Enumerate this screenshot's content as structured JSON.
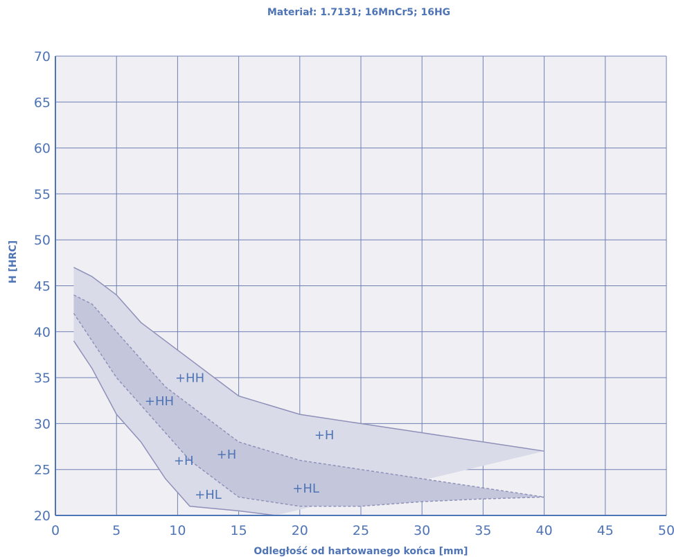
{
  "chart_data": {
    "type": "area",
    "title": "Materiał: 1.7131; 16MnCr5; 16HG",
    "xlabel": "Odległość od hartowanego końca [mm]",
    "ylabel": "H [HRC]",
    "xlim": [
      0,
      50
    ],
    "ylim": [
      20,
      70
    ],
    "xticks": [
      "0",
      "5",
      "10",
      "15",
      "20",
      "25",
      "30",
      "35",
      "40",
      "45",
      "50"
    ],
    "yticks": [
      "20",
      "25",
      "30",
      "35",
      "40",
      "45",
      "50",
      "55",
      "60",
      "65",
      "70"
    ],
    "grid": true,
    "series": [
      {
        "x": [
          1.5,
          3,
          5,
          7,
          9,
          11,
          13,
          15,
          20,
          25,
          30,
          35,
          40
        ],
        "y": [
          47,
          46,
          44,
          41,
          39,
          37,
          35,
          33,
          31,
          30,
          29,
          28,
          27
        ]
      },
      {
        "x": [
          1.5,
          3,
          5,
          7,
          9,
          11,
          13,
          15,
          20,
          25,
          30,
          35,
          40
        ],
        "y": [
          44,
          43,
          40,
          37,
          34,
          32,
          30,
          28,
          26,
          25,
          24,
          23,
          22
        ]
      },
      {
        "x": [
          1.5,
          3,
          5,
          7,
          9,
          11,
          13,
          15,
          20,
          25,
          30,
          35,
          40
        ],
        "y": [
          42,
          39,
          35,
          32,
          29,
          26,
          24,
          22,
          21,
          21,
          21.5,
          21.8,
          22
        ]
      },
      {
        "x": [
          1.5,
          3,
          5,
          7,
          9,
          11,
          15,
          18
        ],
        "y": [
          39,
          36,
          31,
          28,
          24,
          21,
          20.5,
          20
        ]
      }
    ],
    "band_labels": [
      {
        "text": "+HH",
        "x": 11,
        "y": 34.5
      },
      {
        "text": "+HH",
        "x": 8.5,
        "y": 32
      },
      {
        "text": "+H",
        "x": 22,
        "y": 28.3
      },
      {
        "text": "+H",
        "x": 14,
        "y": 26.2
      },
      {
        "text": "+H",
        "x": 10.5,
        "y": 25.5
      },
      {
        "text": "+HL",
        "x": 20.5,
        "y": 22.5
      },
      {
        "text": "+HL",
        "x": 12.5,
        "y": 21.8
      }
    ],
    "colors": {
      "background": "#efeff4",
      "grid": "#6f7fb3",
      "outer_band": "#dadbe8",
      "inner_band": "#c4c7dc",
      "line": "#8f90b9",
      "text": "#4f74b5"
    }
  }
}
